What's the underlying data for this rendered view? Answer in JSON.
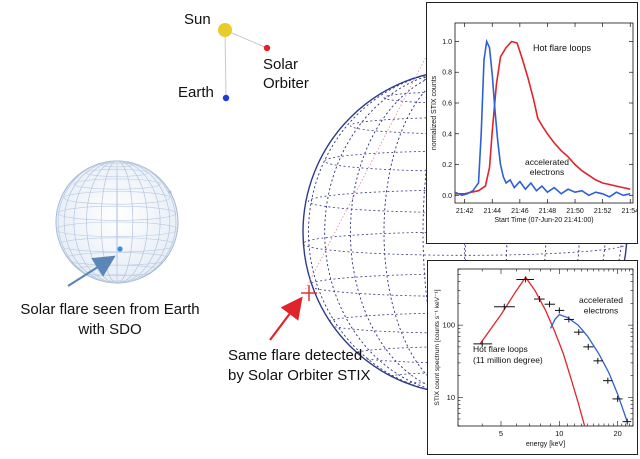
{
  "geometry_labels": {
    "sun": "Sun",
    "solar_orbiter": "Solar\nOrbiter",
    "earth": "Earth"
  },
  "captions": {
    "sdo": "Solar flare seen from Earth\nwith SDO",
    "stix": "Same flare detected\nby Solar Orbiter STIX"
  },
  "colors": {
    "red": "#e0242b",
    "blue": "#2d5fd6",
    "sun": "#e8cc2a",
    "grid": "#3a3a88",
    "arrow_blue": "#5a86b8",
    "marker_red": "#e0242b"
  },
  "chart_data": [
    {
      "type": "line",
      "title": "",
      "xlabel": "Start Time (07-Jun-20 21:41:00)",
      "ylabel": "normalized STIX counts",
      "x_ticks": [
        "21:42",
        "21:44",
        "21:46",
        "21:48",
        "21:50",
        "21:52",
        "21:54"
      ],
      "x_tick_minutes": [
        42,
        44,
        46,
        48,
        50,
        52,
        54
      ],
      "y_ticks": [
        "0.0",
        "0.2",
        "0.4",
        "0.6",
        "0.8",
        "1.0"
      ],
      "xlim": [
        41.3,
        54.2
      ],
      "ylim": [
        -0.05,
        1.12
      ],
      "annotations": {
        "hot": "Hot flare loops",
        "acc": "accelerated\nelectrons"
      },
      "series": [
        {
          "key": "hot",
          "color": "#e0242b",
          "x": [
            41.3,
            42.0,
            42.5,
            43.0,
            43.5,
            43.8,
            44.0,
            44.3,
            44.6,
            45.0,
            45.4,
            45.8,
            46.2,
            46.6,
            47.0,
            47.3,
            47.7,
            48.0,
            48.5,
            49.0,
            49.5,
            50.0,
            50.5,
            51.0,
            51.5,
            52.0,
            52.5,
            53.0,
            53.5,
            54.0
          ],
          "y": [
            0.01,
            0.01,
            0.02,
            0.03,
            0.06,
            0.18,
            0.42,
            0.72,
            0.9,
            0.96,
            1.0,
            0.99,
            0.88,
            0.76,
            0.62,
            0.5,
            0.44,
            0.4,
            0.34,
            0.29,
            0.25,
            0.2,
            0.16,
            0.13,
            0.1,
            0.08,
            0.07,
            0.06,
            0.05,
            0.04
          ]
        },
        {
          "key": "acc",
          "color": "#2d5fd6",
          "x": [
            41.3,
            41.8,
            42.2,
            42.6,
            43.0,
            43.2,
            43.4,
            43.6,
            43.8,
            44.0,
            44.2,
            44.4,
            44.6,
            44.8,
            45.0,
            45.3,
            45.6,
            46.0,
            46.4,
            46.8,
            47.2,
            47.6,
            48.0,
            48.5,
            49.0,
            49.5,
            50.0,
            50.5,
            51.0,
            51.5,
            52.0,
            52.5,
            53.0,
            53.5,
            54.0
          ],
          "y": [
            0.02,
            0.0,
            0.01,
            0.03,
            0.08,
            0.4,
            0.88,
            1.0,
            0.96,
            0.78,
            0.55,
            0.35,
            0.2,
            0.12,
            0.08,
            0.1,
            0.05,
            0.09,
            0.04,
            0.08,
            0.03,
            0.06,
            0.02,
            0.05,
            0.01,
            0.04,
            0.02,
            0.03,
            0.0,
            0.02,
            0.01,
            -0.01,
            0.02,
            0.0,
            0.01
          ]
        }
      ]
    },
    {
      "type": "line",
      "title": "",
      "xlabel": "energy [keV]",
      "ylabel": "STIX count spectrum [counts s⁻¹ keV⁻¹]",
      "x_scale": "log",
      "y_scale": "log",
      "x_ticks": [
        5,
        10,
        20
      ],
      "y_ticks": [
        10,
        100
      ],
      "xlim": [
        3.0,
        24.0
      ],
      "ylim": [
        4,
        600
      ],
      "annotations": {
        "hot": "Hot flare loops\n(11 million degree)",
        "acc": "accelerated\nelectrons"
      },
      "points": {
        "x": [
          4.0,
          5.2,
          6.7,
          7.9,
          8.9,
          10.0,
          11.2,
          12.6,
          14.1,
          15.8,
          17.8,
          20.0,
          22.4
        ],
        "xerr_low": [
          3.6,
          4.6,
          6.0,
          7.4,
          8.4,
          9.5,
          10.6,
          11.9,
          13.3,
          15.0,
          16.8,
          18.8,
          21.2
        ],
        "xerr_high": [
          4.5,
          5.9,
          7.4,
          8.4,
          9.5,
          10.6,
          11.9,
          13.3,
          15.0,
          16.8,
          18.8,
          21.2,
          23.5
        ],
        "y": [
          55,
          180,
          430,
          230,
          195,
          160,
          120,
          80,
          50,
          32,
          17,
          9.5,
          4.6
        ]
      },
      "series": [
        {
          "key": "hot",
          "name": "Hot flare loops",
          "color": "#e0242b",
          "x": [
            3.9,
            5.0,
            6.0,
            6.7,
            7.5,
            8.5,
            9.5,
            10.5,
            11.5,
            12.5,
            13.5
          ],
          "y": [
            55,
            140,
            300,
            460,
            300,
            160,
            80,
            40,
            18,
            8.5,
            4.0
          ]
        },
        {
          "key": "acc",
          "name": "accelerated electrons",
          "color": "#2d5fd6",
          "x": [
            9.0,
            9.5,
            10.0,
            11.0,
            12.5,
            14.0,
            16.0,
            18.0,
            20.0,
            22.4
          ],
          "y": [
            90,
            120,
            140,
            128,
            100,
            70,
            40,
            22,
            11,
            4.6
          ]
        }
      ]
    }
  ]
}
